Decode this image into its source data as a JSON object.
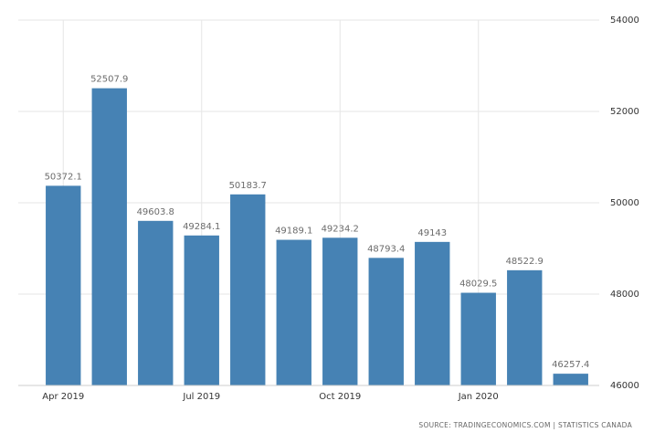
{
  "chart_data": {
    "type": "bar",
    "categories": [
      "Apr 2019",
      null,
      null,
      "Jul 2019",
      null,
      null,
      "Oct 2019",
      null,
      null,
      "Jan 2020",
      null,
      null
    ],
    "values": [
      50372.1,
      52507.9,
      49603.8,
      49284.1,
      50183.7,
      49189.1,
      49234.2,
      48793.4,
      49143,
      48029.5,
      48522.9,
      46257.4
    ],
    "color": "#4682b4",
    "ylim": [
      46000,
      54000
    ],
    "yticks": [
      46000,
      48000,
      50000,
      52000,
      54000
    ],
    "grid": true,
    "source": "SOURCE: TRADINGECONOMICS.COM | STATISTICS CANADA"
  }
}
